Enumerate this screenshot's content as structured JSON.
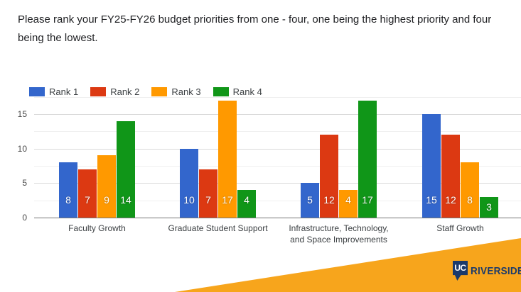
{
  "header": {
    "question": "Please rank your FY25-FY26 budget priorities from  one - four, one being the highest priority and four being the lowest."
  },
  "chart_data": {
    "type": "bar",
    "title": "",
    "categories": [
      "Faculty Growth",
      "Graduate Student Support",
      "Infrastructure, Technology,\nand Space Improvements",
      "Staff Growth"
    ],
    "series": [
      {
        "name": "Rank 1",
        "color": "#3366CC",
        "values": [
          8,
          10,
          5,
          15
        ]
      },
      {
        "name": "Rank 2",
        "color": "#DC3912",
        "values": [
          7,
          7,
          12,
          12
        ]
      },
      {
        "name": "Rank 3",
        "color": "#FF9900",
        "values": [
          9,
          17,
          4,
          8
        ]
      },
      {
        "name": "Rank 4",
        "color": "#109618",
        "values": [
          14,
          4,
          17,
          3
        ]
      }
    ],
    "yticks": [
      0,
      5,
      10,
      15
    ],
    "gridline_values": [
      2.5,
      5,
      7.5,
      10,
      12.5,
      15,
      17.5
    ],
    "ylim": [
      0,
      17.5
    ],
    "grid": true,
    "legend_position": "top-left",
    "bar_value_labels": true
  },
  "footer": {
    "gold_color": "#F7A51C",
    "navy_color": "#1B3A6B",
    "brand": {
      "uc_monogram": "UC",
      "wordmark": "RIVERSIDE"
    }
  }
}
